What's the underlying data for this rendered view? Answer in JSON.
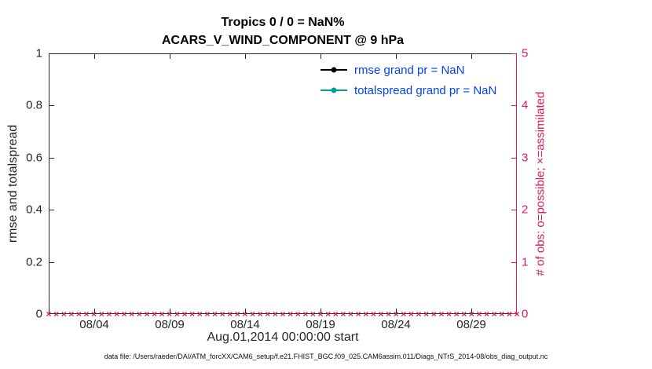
{
  "figure": {
    "title1": "Tropics 0 / 0 = NaN%",
    "title2": "ACARS_V_WIND_COMPONENT @ 9 hPa",
    "footer": "data file: /Users/raeder/DAI/ATM_forcXX/CAM6_setup/f.e21.FHIST_BGC.f09_025.CAM6assim.011/Diags_NTrS_2014-08/obs_diag_output.nc"
  },
  "axes": {
    "left": {
      "label": "rmse and totalspread",
      "tick_labels": [
        "0",
        "0.2",
        "0.4",
        "0.6",
        "0.8",
        "1"
      ],
      "tick_values": [
        0,
        0.2,
        0.4,
        0.6,
        0.8,
        1
      ],
      "range": [
        0,
        1
      ]
    },
    "right": {
      "label": "# of obs: o=possible; ×=assimilated",
      "tick_labels": [
        "0",
        "1",
        "2",
        "3",
        "4",
        "5"
      ],
      "tick_values": [
        0,
        1,
        2,
        3,
        4,
        5
      ],
      "range": [
        0,
        5
      ],
      "color": "#d81b60"
    },
    "x": {
      "label": "Aug.01,2014 00:00:00 start",
      "tick_labels": [
        "08/04",
        "08/09",
        "08/14",
        "08/19",
        "08/24",
        "08/29"
      ],
      "tick_days": [
        3,
        8,
        13,
        18,
        23,
        28
      ],
      "range_days": [
        0,
        31
      ]
    }
  },
  "legend": [
    {
      "label": "rmse grand pr = NaN",
      "line_color": "#000000",
      "marker": "dot",
      "text_color": "#0044ee"
    },
    {
      "label": "totalspread grand pr = NaN",
      "line_color": "#009e8e",
      "marker": "dot",
      "text_color": "#0044ee"
    }
  ],
  "chart_data": {
    "type": "line",
    "title": "Tropics 0 / 0 = NaN% — ACARS_V_WIND_COMPONENT @ 9 hPa",
    "xlabel": "Aug.01,2014 00:00:00 start",
    "ylabel_left": "rmse and totalspread",
    "ylabel_right": "# of obs: o=possible; ×=assimilated",
    "ylim_left": [
      0,
      1
    ],
    "ylim_right": [
      0,
      5
    ],
    "x_range_days_from_aug01": [
      0,
      31
    ],
    "x_tick_labels": [
      "08/04",
      "08/09",
      "08/14",
      "08/19",
      "08/24",
      "08/29"
    ],
    "x_tick_days": [
      3,
      8,
      13,
      18,
      23,
      28
    ],
    "grid": false,
    "legend_position": "upper-center-right, no box",
    "series": [
      {
        "name": "rmse grand pr = NaN",
        "color": "#000000",
        "values": [],
        "note": "all values NaN — no curve plotted"
      },
      {
        "name": "totalspread grand pr = NaN",
        "color": "#009e8e",
        "values": [],
        "note": "all values NaN — no curve plotted"
      }
    ],
    "obs_markers": {
      "name": "assimilated obs count (×, right axis)",
      "value": 0,
      "times_days": {
        "start": 0,
        "end": 31,
        "step": 0.5
      },
      "color": "#d81b60",
      "note": "row of × markers at y=0 along the full x-axis"
    }
  }
}
